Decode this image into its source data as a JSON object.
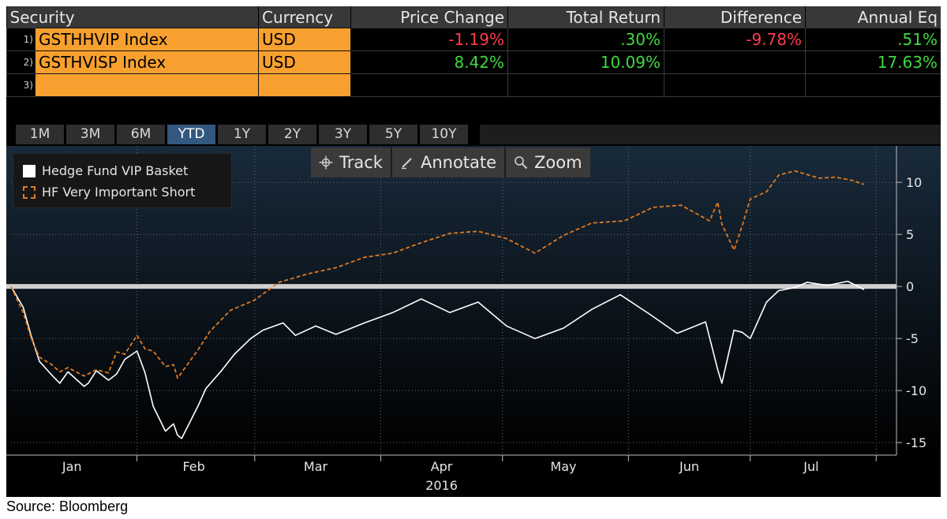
{
  "table": {
    "headers": [
      "Security",
      "Currency",
      "Price Change",
      "Total Return",
      "Difference",
      "Annual Eq"
    ],
    "rows": [
      {
        "num": "1)",
        "security": "GSTHHVIP Index",
        "currency": "USD",
        "price_change": "-1.19%",
        "total_return": ".30%",
        "difference": "-9.78%",
        "annual_eq": ".51%"
      },
      {
        "num": "2)",
        "security": "GSTHVISP Index",
        "currency": "USD",
        "price_change": "8.42%",
        "total_return": "10.09%",
        "difference": "",
        "annual_eq": "17.63%"
      },
      {
        "num": "3)",
        "security": "",
        "currency": "",
        "price_change": "",
        "total_return": "",
        "difference": "",
        "annual_eq": ""
      }
    ]
  },
  "tabs": [
    {
      "label": "1M",
      "active": false
    },
    {
      "label": "3M",
      "active": false
    },
    {
      "label": "6M",
      "active": false
    },
    {
      "label": "YTD",
      "active": true
    },
    {
      "label": "1Y",
      "active": false
    },
    {
      "label": "2Y",
      "active": false
    },
    {
      "label": "3Y",
      "active": false
    },
    {
      "label": "5Y",
      "active": false
    },
    {
      "label": "10Y",
      "active": false
    }
  ],
  "toolbar": {
    "track": "Track",
    "annotate": "Annotate",
    "zoom": "Zoom"
  },
  "colors": {
    "vip": "#ffffff",
    "short": "#e07a22",
    "grid": "#6b6b6b",
    "zero_line": "#cfcfcf",
    "positive": "#3fd93f",
    "negative": "#ff3b4e"
  },
  "chart_data": {
    "type": "line",
    "xlabel": "2016",
    "x_ticks": [
      "Jan",
      "Feb",
      "Mar",
      "Apr",
      "May",
      "Jun",
      "Jul"
    ],
    "y_ticks": [
      10,
      5,
      0,
      -5,
      -10,
      -15
    ],
    "ylim": [
      -16.2,
      13.5
    ],
    "grid": true,
    "legend_position": "top-left",
    "series": [
      {
        "name": "Hedge Fund VIP Basket",
        "style": "solid",
        "x": [
          "2016-01-01",
          "2016-01-04",
          "2016-01-06",
          "2016-01-08",
          "2016-01-11",
          "2016-01-13",
          "2016-01-15",
          "2016-01-19",
          "2016-01-20",
          "2016-01-22",
          "2016-01-25",
          "2016-01-27",
          "2016-01-29",
          "2016-02-01",
          "2016-02-03",
          "2016-02-05",
          "2016-02-08",
          "2016-02-10",
          "2016-02-11",
          "2016-02-12",
          "2016-02-16",
          "2016-02-18",
          "2016-02-22",
          "2016-02-25",
          "2016-02-29",
          "2016-03-03",
          "2016-03-08",
          "2016-03-11",
          "2016-03-16",
          "2016-03-21",
          "2016-03-28",
          "2016-04-04",
          "2016-04-11",
          "2016-04-18",
          "2016-04-25",
          "2016-05-02",
          "2016-05-09",
          "2016-05-16",
          "2016-05-23",
          "2016-05-30",
          "2016-06-06",
          "2016-06-13",
          "2016-06-20",
          "2016-06-23",
          "2016-06-24",
          "2016-06-27",
          "2016-06-29",
          "2016-07-01",
          "2016-07-05",
          "2016-07-08",
          "2016-07-12",
          "2016-07-15",
          "2016-07-20",
          "2016-07-25",
          "2016-07-29"
        ],
        "y": [
          0,
          -2,
          -4.8,
          -7.2,
          -8.5,
          -9.3,
          -8.2,
          -9.6,
          -9.3,
          -8.1,
          -9,
          -8.4,
          -7,
          -6.2,
          -8.3,
          -11.5,
          -13.9,
          -13.2,
          -14.3,
          -14.6,
          -11.5,
          -9.8,
          -8,
          -6.5,
          -5,
          -4.2,
          -3.5,
          -4.7,
          -3.8,
          -4.6,
          -3.5,
          -2.5,
          -1.2,
          -2.5,
          -1.5,
          -3.8,
          -5,
          -4,
          -2.2,
          -0.8,
          -2.6,
          -4.5,
          -3.4,
          -8,
          -9.3,
          -4.2,
          -4.4,
          -5,
          -1.5,
          -0.4,
          -0.1,
          0.4,
          0.1,
          0.5,
          -0.3
        ]
      },
      {
        "name": "HF Very Important Short",
        "style": "dashed",
        "x": [
          "2016-01-01",
          "2016-01-04",
          "2016-01-06",
          "2016-01-08",
          "2016-01-11",
          "2016-01-13",
          "2016-01-15",
          "2016-01-19",
          "2016-01-22",
          "2016-01-25",
          "2016-01-27",
          "2016-01-29",
          "2016-02-01",
          "2016-02-03",
          "2016-02-05",
          "2016-02-08",
          "2016-02-10",
          "2016-02-11",
          "2016-02-16",
          "2016-02-19",
          "2016-02-24",
          "2016-03-01",
          "2016-03-07",
          "2016-03-14",
          "2016-03-21",
          "2016-03-28",
          "2016-04-04",
          "2016-04-11",
          "2016-04-18",
          "2016-04-25",
          "2016-05-02",
          "2016-05-09",
          "2016-05-16",
          "2016-05-23",
          "2016-05-31",
          "2016-06-07",
          "2016-06-14",
          "2016-06-21",
          "2016-06-23",
          "2016-06-24",
          "2016-06-27",
          "2016-06-29",
          "2016-07-01",
          "2016-07-05",
          "2016-07-08",
          "2016-07-12",
          "2016-07-18",
          "2016-07-22",
          "2016-07-26",
          "2016-07-29"
        ],
        "y": [
          0,
          -2.5,
          -5,
          -6.8,
          -7.5,
          -8.2,
          -7.8,
          -8.6,
          -8,
          -8.3,
          -6.3,
          -6.5,
          -4.7,
          -6,
          -6.2,
          -7.7,
          -7.5,
          -8.8,
          -6.1,
          -4.3,
          -2.3,
          -1.3,
          0.4,
          1.2,
          1.8,
          2.8,
          3.2,
          4.2,
          5.1,
          5.3,
          4.6,
          3.2,
          4.9,
          6.1,
          6.3,
          7.6,
          7.8,
          6.3,
          8.1,
          6,
          3.5,
          5.8,
          8.4,
          9.1,
          10.7,
          11.1,
          10.4,
          10.5,
          10.2,
          9.8
        ]
      }
    ]
  },
  "source": "Source: Bloomberg"
}
